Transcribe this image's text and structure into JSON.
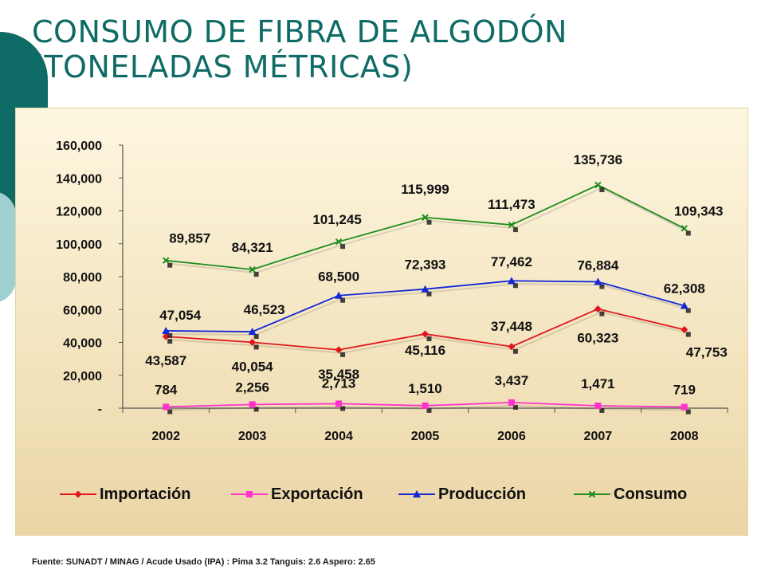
{
  "title_line1": "CONSUMO DE FIBRA DE ALGODÓN",
  "title_line2": "(TONELADAS MÉTRICAS)",
  "source_note": "Fuente: SUNADT / MINAG  /  Acude Usado (IPA) : Pima 3.2 Tanguis: 2.6 Aspero: 2.65",
  "chart_data": {
    "type": "line",
    "categories": [
      "2002",
      "2003",
      "2004",
      "2005",
      "2006",
      "2007",
      "2008"
    ],
    "ylim": [
      0,
      160000
    ],
    "yticks": [
      0,
      20000,
      40000,
      60000,
      80000,
      100000,
      120000,
      140000,
      160000
    ],
    "ytick_labels": [
      "-",
      "20,000",
      "40,000",
      "60,000",
      "80,000",
      "100,000",
      "120,000",
      "140,000",
      "160,000"
    ],
    "legend_position": "bottom",
    "grid": false,
    "series": [
      {
        "name": "Importación",
        "color": "#e0161c",
        "marker": "diamond",
        "values": [
          43587,
          40054,
          35458,
          45116,
          37448,
          60323,
          47753
        ],
        "labels": [
          "43,587",
          "40,054",
          "35,458",
          "45,116",
          "37,448",
          "60,323",
          "47,753"
        ]
      },
      {
        "name": "Exportación",
        "color": "#ff33cc",
        "marker": "square",
        "values": [
          784,
          2256,
          2713,
          1510,
          3437,
          1471,
          719
        ],
        "labels": [
          "784",
          "2,256",
          "2,713",
          "1,510",
          "3,437",
          "1,471",
          "719"
        ]
      },
      {
        "name": "Producción",
        "color": "#1428d6",
        "marker": "triangle",
        "values": [
          47054,
          46523,
          68500,
          72393,
          77462,
          76884,
          62308
        ],
        "labels": [
          "47,054",
          "46,523",
          "68,500",
          "72,393",
          "77,462",
          "76,884",
          "62,308"
        ]
      },
      {
        "name": "Consumo",
        "color": "#1f8c1f",
        "marker": "star",
        "values": [
          89857,
          84321,
          101245,
          115999,
          111473,
          135736,
          109343
        ],
        "labels": [
          "89,857",
          "84,321",
          "101,245",
          "115,999",
          "111,473",
          "135,736",
          "109,343"
        ]
      }
    ]
  }
}
